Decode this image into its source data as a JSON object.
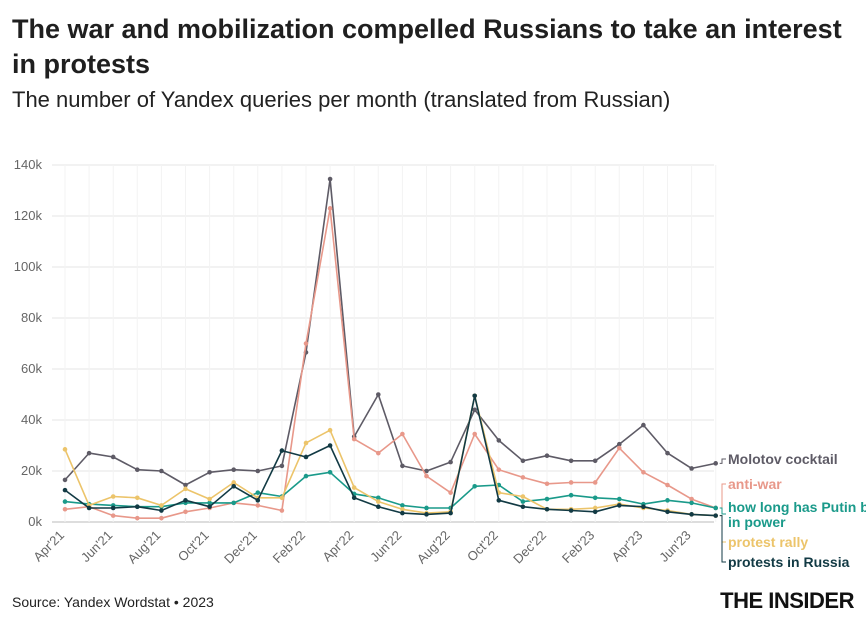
{
  "title": "The war and mobilization compelled Russians to take an interest in protests",
  "subtitle": "The number of Yandex queries per month (translated from Russian)",
  "source": "Source: Yandex Wordstat • 2023",
  "logo": "THE INSIDER",
  "chart_data": {
    "type": "line",
    "title": "The war and mobilization compelled Russians to take an interest in protests",
    "subtitle": "The number of Yandex queries per month (translated from Russian)",
    "x": [
      "Apr'21",
      "May'21",
      "Jun'21",
      "Jul'21",
      "Aug'21",
      "Sep'21",
      "Oct'21",
      "Nov'21",
      "Dec'21",
      "Jan'22",
      "Feb'22",
      "Mar'22",
      "Apr'22",
      "May'22",
      "Jun'22",
      "Jul'22",
      "Aug'22",
      "Sep'22",
      "Oct'22",
      "Nov'22",
      "Dec'22",
      "Jan'23",
      "Feb'23",
      "Mar'23",
      "Apr'23",
      "May'23",
      "Jun'23",
      "Jul'23"
    ],
    "x_tick_labels": [
      "Apr'21",
      "Jun'21",
      "Aug'21",
      "Oct'21",
      "Dec'21",
      "Feb'22",
      "Apr'22",
      "Jun'22",
      "Aug'22",
      "Oct'22",
      "Dec'22",
      "Feb'23",
      "Apr'23",
      "Jun'23"
    ],
    "ylim": [
      0,
      140000
    ],
    "y_ticks": [
      0,
      20000,
      40000,
      60000,
      80000,
      100000,
      120000,
      140000
    ],
    "y_tick_labels": [
      "0k",
      "20k",
      "40k",
      "60k",
      "80k",
      "100k",
      "120k",
      "140k"
    ],
    "grid": true,
    "legend_placement": "right, at line ends",
    "series": [
      {
        "name": "Molotov cocktail",
        "color": "#5e5b66",
        "values": [
          16500,
          27000,
          25500,
          20500,
          20000,
          14500,
          19500,
          20500,
          20000,
          22000,
          66500,
          134500,
          33500,
          50000,
          22000,
          20000,
          23500,
          44000,
          32000,
          24000,
          26000,
          24000,
          24000,
          30500,
          38000,
          27000,
          21000,
          23000
        ]
      },
      {
        "name": "anti-war",
        "color": "#e8988a",
        "values": [
          5000,
          6000,
          2500,
          1500,
          1500,
          4000,
          5500,
          7500,
          6500,
          4500,
          70000,
          123000,
          32500,
          27000,
          34500,
          18000,
          11500,
          34500,
          20500,
          17500,
          15000,
          15500,
          15500,
          29000,
          19500,
          14500,
          9000,
          5500
        ]
      },
      {
        "name": "how long has Putin been in power",
        "color": "#1a9a8a",
        "values": [
          8000,
          7000,
          6500,
          6000,
          6000,
          7500,
          7500,
          7500,
          11500,
          10000,
          18000,
          19500,
          11000,
          9500,
          6500,
          5500,
          5500,
          14000,
          14500,
          8000,
          9000,
          10500,
          9500,
          9000,
          7000,
          8500,
          7500,
          5500
        ]
      },
      {
        "name": "protest rally",
        "color": "#ecc46a",
        "values": [
          28500,
          6500,
          10000,
          9500,
          6500,
          13000,
          9000,
          15500,
          9500,
          9500,
          31000,
          36000,
          13500,
          8000,
          5000,
          3500,
          4000,
          49500,
          11500,
          10000,
          5000,
          5000,
          5500,
          7000,
          5500,
          4500,
          3000,
          2500
        ]
      },
      {
        "name": "protests in Russia",
        "color": "#123a44",
        "values": [
          12500,
          5500,
          5500,
          6000,
          4500,
          8500,
          6000,
          14000,
          8500,
          28000,
          25500,
          30000,
          9500,
          6000,
          3500,
          3000,
          3500,
          49500,
          8500,
          6000,
          5000,
          4500,
          4000,
          6500,
          6000,
          4000,
          3000,
          2500
        ]
      }
    ]
  }
}
